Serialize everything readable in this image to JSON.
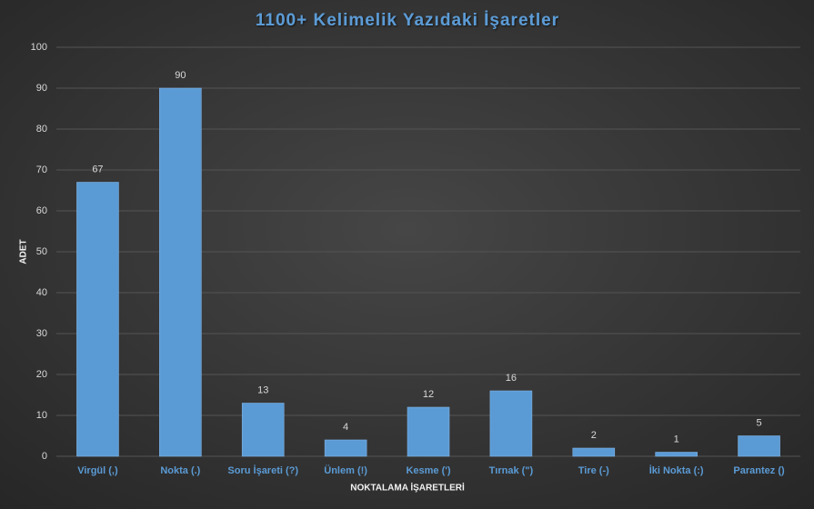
{
  "chart_data": {
    "type": "bar",
    "title": "1100+ Kelimelik Yazıdaki İşaretler",
    "x_label": "NOKTALAMA İŞARETLERİ",
    "y_label": "ADET",
    "categories": [
      "Virgül (,)",
      "Nokta (.)",
      "Soru İşareti (?)",
      "Ünlem (!)",
      "Kesme (')",
      "Tırnak (\")",
      "Tire (-)",
      "İki Nokta (:)",
      "Parantez ()"
    ],
    "values": [
      67,
      90,
      13,
      4,
      12,
      16,
      2,
      1,
      5
    ],
    "color": "#5b9bd5",
    "ylim": [
      0,
      100
    ],
    "yticks": [
      0,
      10,
      20,
      30,
      40,
      50,
      60,
      70,
      80,
      90,
      100
    ],
    "grid": true
  }
}
